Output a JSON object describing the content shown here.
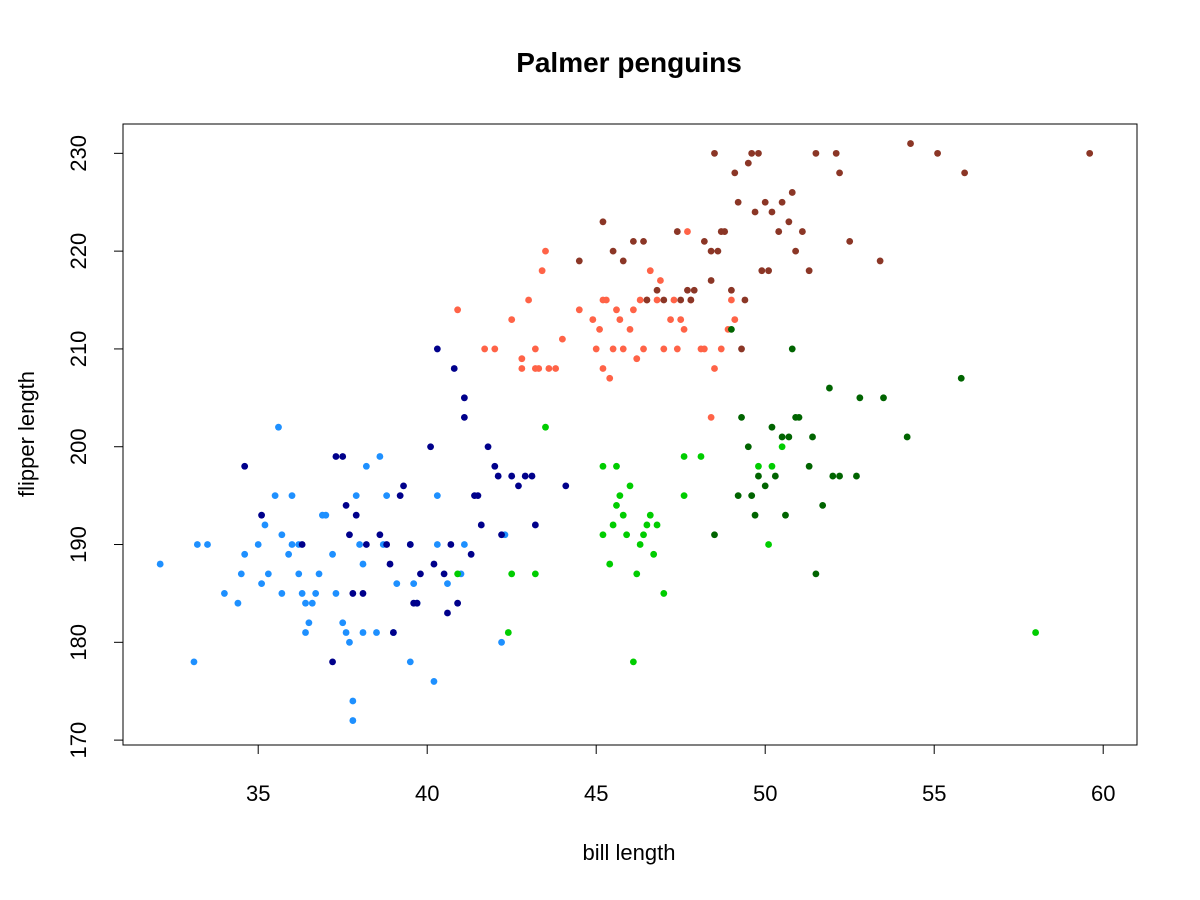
{
  "chart_data": {
    "type": "scatter",
    "title": "Palmer penguins",
    "xlabel": "bill length",
    "ylabel": "flipper length",
    "xlim": [
      31,
      61
    ],
    "ylim": [
      169.5,
      233
    ],
    "xticks": [
      35,
      40,
      45,
      50,
      55,
      60
    ],
    "yticks": [
      170,
      180,
      190,
      200,
      210,
      220,
      230
    ],
    "grid": false,
    "legend": "none",
    "series": [
      {
        "color": "#1E90FF",
        "x": [
          32.1,
          33.1,
          33.5,
          34.0,
          34.4,
          34.5,
          34.6,
          35.0,
          35.1,
          35.3,
          35.5,
          35.6,
          35.7,
          35.7,
          35.9,
          36.0,
          36.0,
          36.2,
          36.2,
          36.3,
          36.4,
          36.5,
          36.6,
          36.7,
          36.8,
          36.9,
          37.0,
          37.2,
          37.3,
          37.6,
          37.7,
          37.8,
          37.8,
          37.9,
          38.1,
          38.1,
          38.2,
          38.5,
          38.6,
          38.7,
          38.8,
          39.0,
          39.1,
          39.5,
          39.5,
          39.6,
          39.7,
          40.2,
          40.3,
          40.3,
          40.6,
          41.0,
          41.1,
          42.2,
          42.3,
          33.2,
          35.2,
          36.4,
          37.5,
          38.0
        ],
        "y": [
          188,
          178,
          190,
          185,
          184,
          187,
          189,
          190,
          186,
          187,
          195,
          202,
          185,
          191,
          189,
          195,
          190,
          187,
          190,
          185,
          184,
          182,
          184,
          185,
          187,
          193,
          193,
          189,
          185,
          181,
          180,
          174,
          172,
          195,
          181,
          188,
          198,
          181,
          199,
          190,
          195,
          181,
          186,
          178,
          190,
          186,
          184,
          176,
          190,
          195,
          186,
          187,
          190,
          180,
          191,
          190,
          192,
          181,
          182,
          190
        ]
      },
      {
        "color": "#00008B",
        "x": [
          34.6,
          35.1,
          36.3,
          37.2,
          37.3,
          37.5,
          37.6,
          37.7,
          37.8,
          37.9,
          38.1,
          38.2,
          38.6,
          38.8,
          39.0,
          39.2,
          39.3,
          39.5,
          39.6,
          39.7,
          39.8,
          40.1,
          40.2,
          40.5,
          40.6,
          40.7,
          40.8,
          40.9,
          41.1,
          41.3,
          41.4,
          41.5,
          41.6,
          41.8,
          42.0,
          42.1,
          42.2,
          42.5,
          42.7,
          42.9,
          43.1,
          43.2,
          44.1,
          40.3,
          41.1,
          38.9
        ],
        "y": [
          198,
          193,
          190,
          178,
          199,
          199,
          194,
          191,
          185,
          193,
          185,
          190,
          191,
          190,
          181,
          195,
          196,
          190,
          184,
          184,
          187,
          200,
          188,
          187,
          183,
          190,
          208,
          184,
          205,
          189,
          195,
          195,
          192,
          200,
          198,
          197,
          191,
          197,
          196,
          197,
          197,
          192,
          196,
          210,
          203,
          188
        ]
      },
      {
        "color": "#FF6347",
        "x": [
          40.9,
          41.7,
          42.0,
          42.5,
          42.8,
          42.8,
          43.0,
          43.2,
          43.2,
          43.3,
          43.4,
          43.5,
          43.6,
          43.8,
          44.0,
          44.5,
          44.9,
          45.0,
          45.1,
          45.2,
          45.2,
          45.3,
          45.4,
          45.5,
          45.6,
          45.7,
          45.8,
          46.0,
          46.1,
          46.2,
          46.3,
          46.4,
          46.5,
          46.6,
          46.8,
          46.9,
          47.0,
          47.2,
          47.3,
          47.4,
          47.5,
          47.6,
          47.7,
          47.8,
          48.1,
          48.2,
          48.4,
          48.5,
          48.7,
          48.9,
          49.0,
          49.1
        ],
        "y": [
          214,
          210,
          210,
          213,
          208,
          209,
          215,
          208,
          210,
          208,
          218,
          220,
          208,
          208,
          211,
          214,
          213,
          210,
          212,
          215,
          208,
          215,
          207,
          210,
          214,
          213,
          210,
          212,
          214,
          209,
          215,
          210,
          215,
          218,
          215,
          217,
          210,
          213,
          215,
          210,
          213,
          212,
          222,
          215,
          210,
          210,
          203,
          208,
          210,
          212,
          215,
          213
        ]
      },
      {
        "color": "#8B3626",
        "x": [
          44.5,
          45.2,
          45.5,
          45.8,
          46.1,
          46.4,
          46.5,
          46.8,
          47.0,
          47.4,
          47.5,
          47.7,
          47.8,
          47.9,
          48.2,
          48.4,
          48.5,
          48.6,
          48.7,
          48.8,
          49.0,
          49.1,
          49.2,
          49.4,
          49.5,
          49.6,
          49.7,
          49.8,
          49.9,
          50.0,
          50.1,
          50.2,
          50.4,
          50.5,
          50.7,
          50.8,
          50.9,
          51.1,
          51.3,
          51.5,
          52.1,
          52.2,
          52.5,
          53.4,
          54.3,
          55.1,
          55.9,
          59.6,
          48.4,
          49.3
        ],
        "y": [
          219,
          223,
          220,
          219,
          221,
          221,
          215,
          216,
          215,
          222,
          215,
          216,
          215,
          216,
          221,
          220,
          230,
          220,
          222,
          222,
          216,
          228,
          225,
          215,
          229,
          230,
          224,
          230,
          218,
          225,
          218,
          224,
          222,
          225,
          223,
          226,
          220,
          222,
          218,
          230,
          230,
          228,
          221,
          219,
          231,
          230,
          228,
          230,
          217,
          210
        ]
      },
      {
        "color": "#00CD00",
        "x": [
          40.9,
          42.4,
          42.5,
          43.2,
          43.5,
          45.2,
          45.2,
          45.4,
          45.5,
          45.6,
          45.7,
          45.8,
          45.9,
          46.0,
          46.1,
          46.2,
          46.3,
          46.4,
          46.5,
          46.6,
          46.7,
          46.8,
          47.0,
          47.6,
          47.6,
          48.1,
          49.8,
          50.1,
          50.2,
          50.5,
          58.0,
          45.6
        ],
        "y": [
          187,
          181,
          187,
          187,
          202,
          198,
          191,
          188,
          192,
          198,
          195,
          193,
          191,
          196,
          178,
          187,
          190,
          191,
          192,
          193,
          189,
          192,
          185,
          199,
          195,
          199,
          198,
          190,
          198,
          200,
          181,
          194
        ]
      },
      {
        "color": "#006400",
        "x": [
          48.5,
          49.0,
          49.2,
          49.3,
          49.5,
          49.6,
          49.7,
          50.0,
          50.2,
          50.3,
          50.5,
          50.6,
          50.7,
          50.8,
          50.9,
          51.0,
          51.3,
          51.4,
          51.5,
          51.7,
          51.9,
          52.0,
          52.2,
          52.7,
          52.8,
          53.5,
          54.2,
          55.8,
          49.8
        ],
        "y": [
          191,
          212,
          195,
          203,
          200,
          195,
          193,
          196,
          202,
          197,
          201,
          193,
          201,
          210,
          203,
          203,
          198,
          201,
          187,
          194,
          206,
          197,
          197,
          197,
          205,
          205,
          201,
          207,
          197
        ]
      }
    ]
  }
}
